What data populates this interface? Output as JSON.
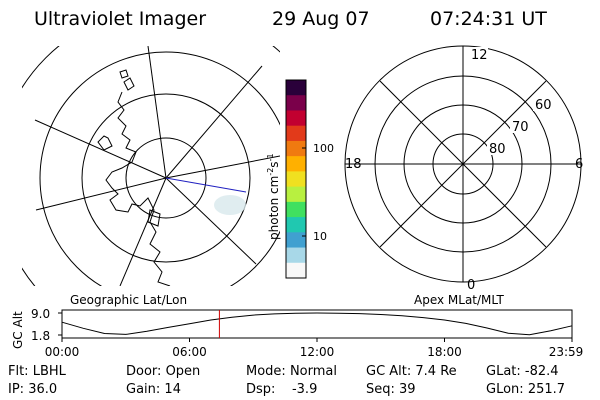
{
  "header": {
    "title": "Ultraviolet Imager",
    "date": "29 Aug 07",
    "time": "07:24:31 UT"
  },
  "colorbar": {
    "unit_label": "photon cm",
    "unit_exp1": "-2",
    "unit_mid": "s",
    "unit_exp2": "-1",
    "tick_labels": [
      "100",
      "10"
    ],
    "colors": [
      "#2a003a",
      "#7a004a",
      "#c20030",
      "#e23a1a",
      "#f07a10",
      "#ffb000",
      "#f0e020",
      "#b8f040",
      "#40e060",
      "#20c8b0",
      "#40a0d0",
      "#a8d8e8",
      "#f8f8f8"
    ]
  },
  "left_map": {
    "caption": "Geographic Lat/Lon",
    "noon_line_color": "#2020c0"
  },
  "right_map": {
    "caption": "Apex MLat/MLT",
    "mlt_labels": {
      "top": "12",
      "bottom": "0",
      "left": "18",
      "right": "6"
    },
    "lat_labels": [
      "60",
      "70",
      "80"
    ]
  },
  "chart_data": {
    "type": "line",
    "title": "",
    "ylabel": "GC Alt",
    "y_ticks": [
      "9.0",
      "1.8"
    ],
    "ylim": [
      1.8,
      9.0
    ],
    "x_ticks": [
      "00:00",
      "06:00",
      "12:00",
      "18:00",
      "23:59"
    ],
    "xlim_hours": [
      0,
      24
    ],
    "series": [
      {
        "x": [
          0,
          1,
          2,
          3,
          4,
          5,
          6,
          7,
          8,
          9,
          10,
          11,
          12,
          13,
          14,
          15,
          16,
          17,
          18,
          19,
          20,
          21,
          22,
          23,
          24
        ],
        "y": [
          6.0,
          4.0,
          2.3,
          2.0,
          3.0,
          4.3,
          5.5,
          6.7,
          7.6,
          8.3,
          8.7,
          8.95,
          9.0,
          8.95,
          8.8,
          8.5,
          8.1,
          7.5,
          6.7,
          5.6,
          4.1,
          2.4,
          1.9,
          3.2,
          4.8
        ]
      }
    ],
    "current_time_hours": 7.408,
    "marker_color": "#d00000"
  },
  "footer": {
    "row1": [
      {
        "label": "Flt:",
        "value": "LBHL"
      },
      {
        "label": "Door:",
        "value": "Open"
      },
      {
        "label": "Mode:",
        "value": "Normal"
      },
      {
        "label": "GC Alt:",
        "value": "7.4 Re"
      },
      {
        "label": "GLat:",
        "value": "-82.4"
      }
    ],
    "row2": [
      {
        "label": "IP:",
        "value": "36.0"
      },
      {
        "label": "Gain:",
        "value": "14"
      },
      {
        "label": "Dsp:",
        "value": "-3.9"
      },
      {
        "label": "Seq:",
        "value": "39"
      },
      {
        "label": "GLon:",
        "value": "251.7"
      }
    ]
  }
}
